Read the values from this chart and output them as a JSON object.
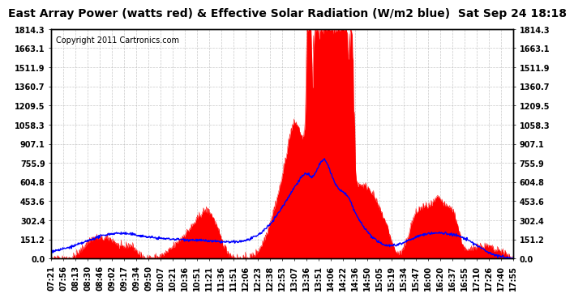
{
  "title": "East Array Power (watts red) & Effective Solar Radiation (W/m2 blue)  Sat Sep 24 18:18",
  "copyright": "Copyright 2011 Cartronics.com",
  "ymax": 1814.3,
  "ymin": 0.0,
  "yticks": [
    0.0,
    151.2,
    302.4,
    453.6,
    604.8,
    755.9,
    907.1,
    1058.3,
    1209.5,
    1360.7,
    1511.9,
    1663.1,
    1814.3
  ],
  "xtick_labels": [
    "07:21",
    "07:56",
    "08:13",
    "08:30",
    "08:46",
    "09:02",
    "09:17",
    "09:34",
    "09:50",
    "10:07",
    "10:21",
    "10:36",
    "10:51",
    "11:21",
    "11:36",
    "11:51",
    "12:06",
    "12:23",
    "12:38",
    "12:53",
    "13:07",
    "13:36",
    "13:51",
    "14:06",
    "14:22",
    "14:36",
    "14:50",
    "15:05",
    "15:19",
    "15:34",
    "15:47",
    "16:00",
    "16:20",
    "16:37",
    "16:55",
    "17:10",
    "17:26",
    "17:40",
    "17:55"
  ],
  "bg_color": "#ffffff",
  "grid_color": "#bbbbbb",
  "red_color": "#ff0000",
  "blue_color": "#0000ff",
  "border_color": "#000000",
  "title_fontsize": 10,
  "copyright_fontsize": 7,
  "tick_fontsize": 7
}
